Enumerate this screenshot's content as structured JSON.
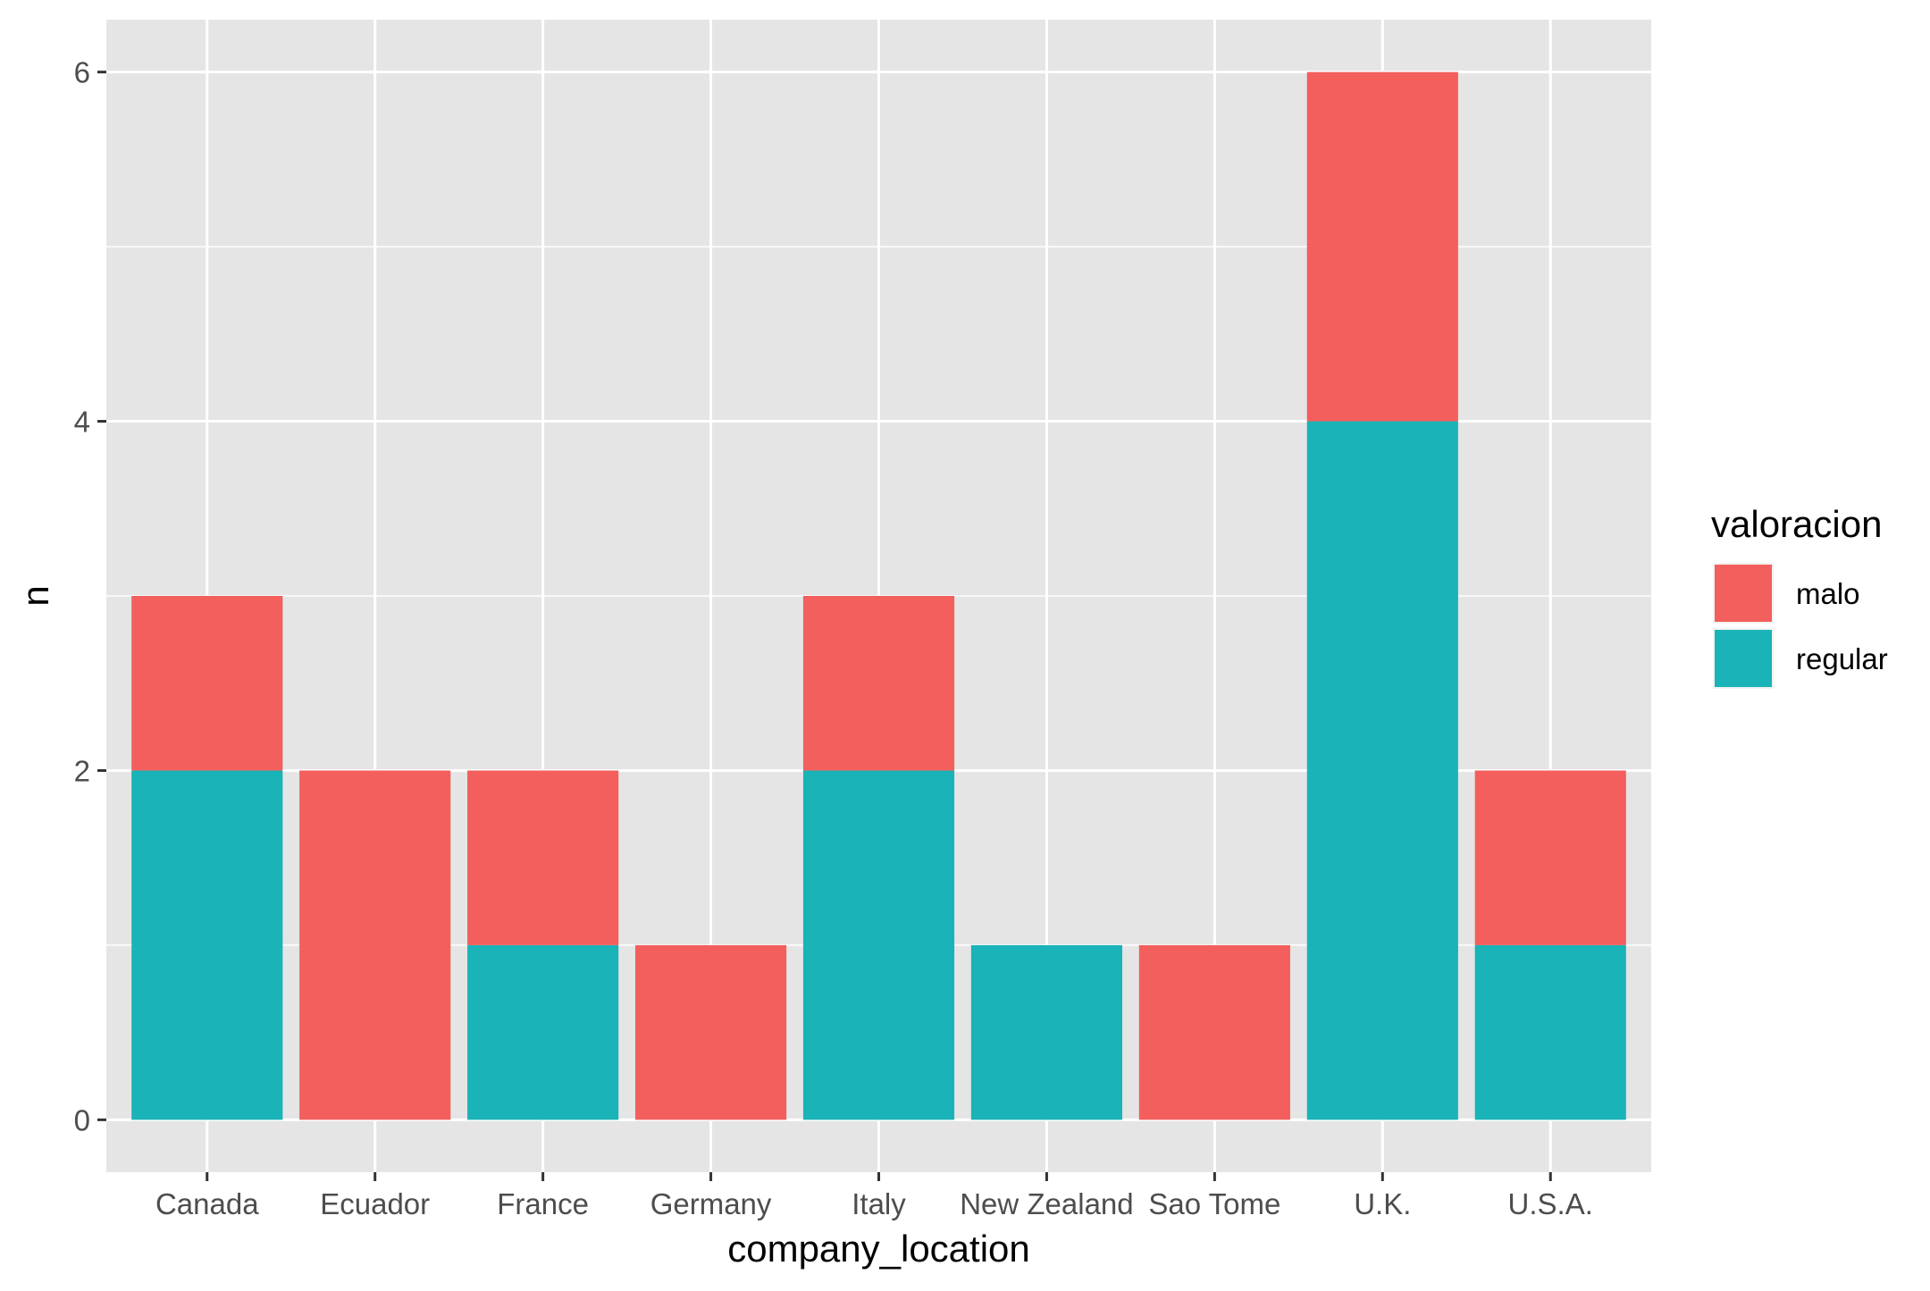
{
  "chart_data": {
    "type": "bar",
    "stacked": true,
    "title": "",
    "xlabel": "company_location",
    "ylabel": "n",
    "ylim": [
      -0.3,
      6.3
    ],
    "yticks": [
      0,
      2,
      4,
      6
    ],
    "y_minor_ticks": [
      1,
      3,
      5
    ],
    "grid": true,
    "legend_position": "right",
    "legend_title": "valoracion",
    "categories": [
      "Canada",
      "Ecuador",
      "France",
      "Germany",
      "Italy",
      "New Zealand",
      "Sao Tome",
      "U.K.",
      "U.S.A."
    ],
    "series": [
      {
        "name": "regular",
        "color": "#19B3B8",
        "values": [
          2,
          0,
          1,
          0,
          2,
          1,
          0,
          4,
          1
        ]
      },
      {
        "name": "malo",
        "color": "#F25F5C",
        "values": [
          1,
          2,
          1,
          1,
          1,
          0,
          1,
          2,
          1
        ]
      }
    ],
    "legend_order": [
      "malo",
      "regular"
    ],
    "colors": {
      "panel": "#E5E5E5",
      "grid": "#FFFFFF",
      "tick": "#333333"
    }
  }
}
